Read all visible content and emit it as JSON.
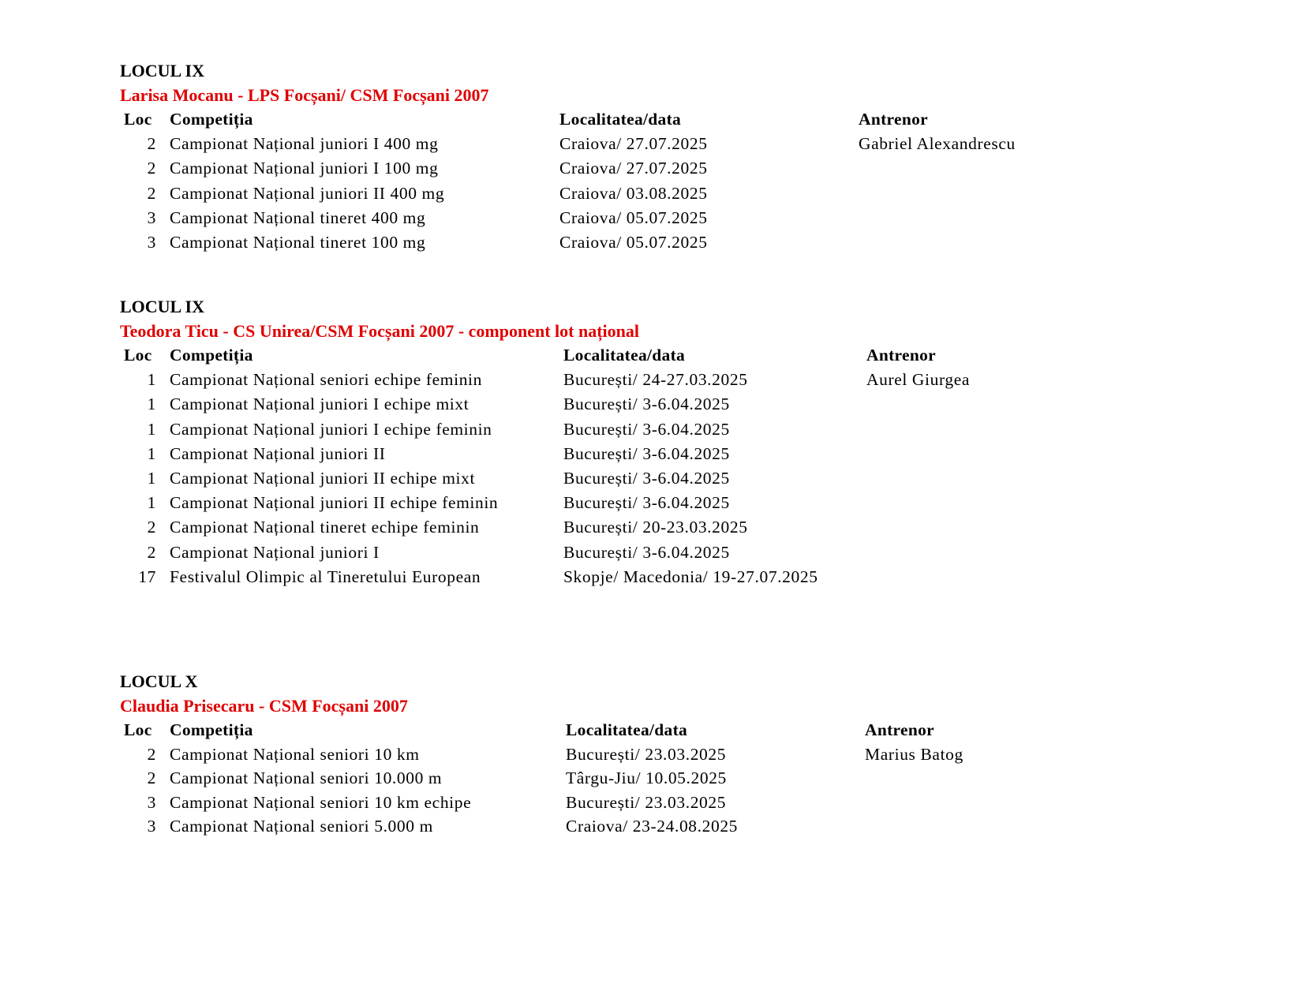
{
  "headers": {
    "loc": "Loc",
    "competition": "Competiția",
    "location_date": "Localitatea/data",
    "coach": "Antrenor"
  },
  "accent_color": "#e00000",
  "sections": [
    {
      "place": "LOCUL IX",
      "athlete": "Larisa Mocanu - LPS Focșani/ CSM Focșani 2007",
      "coach": "Gabriel Alexandrescu",
      "rows": [
        {
          "loc": "2",
          "competition": "Campionat Național juniori I 400 mg",
          "location_date": "Craiova/ 27.07.2025"
        },
        {
          "loc": "2",
          "competition": "Campionat Național juniori I 100 mg",
          "location_date": "Craiova/ 27.07.2025"
        },
        {
          "loc": "2",
          "competition": "Campionat Național juniori II 400 mg",
          "location_date": "Craiova/ 03.08.2025"
        },
        {
          "loc": "3",
          "competition": "Campionat Național tineret 400 mg",
          "location_date": "Craiova/ 05.07.2025"
        },
        {
          "loc": "3",
          "competition": "Campionat Național tineret 100 mg",
          "location_date": "Craiova/ 05.07.2025"
        }
      ]
    },
    {
      "place": "LOCUL IX",
      "athlete": "Teodora Ticu - CS Unirea/CSM Focșani 2007 - component lot național",
      "coach": "Aurel Giurgea",
      "rows": [
        {
          "loc": "1",
          "competition": "Campionat Național seniori echipe feminin",
          "location_date": "București/ 24-27.03.2025"
        },
        {
          "loc": "1",
          "competition": "Campionat Național juniori I echipe mixt",
          "location_date": "București/ 3-6.04.2025"
        },
        {
          "loc": "1",
          "competition": "Campionat Național juniori I echipe feminin",
          "location_date": "București/ 3-6.04.2025"
        },
        {
          "loc": "1",
          "competition": "Campionat Național juniori II",
          "location_date": "București/ 3-6.04.2025"
        },
        {
          "loc": "1",
          "competition": "Campionat Național juniori II echipe mixt",
          "location_date": "București/ 3-6.04.2025"
        },
        {
          "loc": "1",
          "competition": "Campionat Național juniori II echipe feminin",
          "location_date": "București/ 3-6.04.2025"
        },
        {
          "loc": "2",
          "competition": "Campionat Național tineret echipe feminin",
          "location_date": "București/ 20-23.03.2025"
        },
        {
          "loc": "2",
          "competition": "Campionat Național juniori I",
          "location_date": "București/ 3-6.04.2025"
        },
        {
          "loc": "17",
          "competition": "Festivalul Olimpic al Tineretului European",
          "location_date": "Skopje/ Macedonia/ 19-27.07.2025"
        }
      ]
    },
    {
      "place": "LOCUL X",
      "athlete": "Claudia Prisecaru - CSM Focșani 2007",
      "coach": "Marius Batog",
      "rows": [
        {
          "loc": "2",
          "competition": "Campionat Național seniori 10 km",
          "location_date": "București/ 23.03.2025"
        },
        {
          "loc": "2",
          "competition": "Campionat Național seniori 10.000 m",
          "location_date": "Târgu-Jiu/ 10.05.2025"
        },
        {
          "loc": "3",
          "competition": "Campionat Național seniori 10 km echipe",
          "location_date": "București/ 23.03.2025"
        },
        {
          "loc": "3",
          "competition": "Campionat Național seniori 5.000 m",
          "location_date": "Craiova/ 23-24.08.2025"
        }
      ]
    }
  ]
}
